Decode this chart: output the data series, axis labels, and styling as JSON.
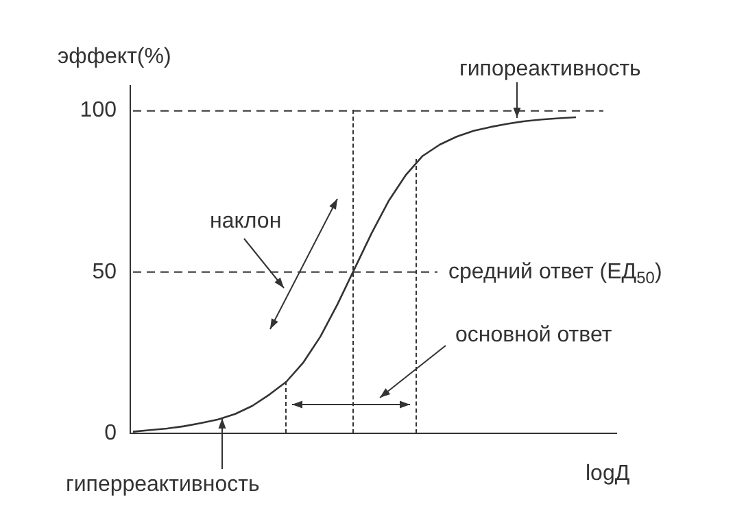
{
  "chart_data": {
    "type": "line",
    "ylabel": "эффект(%)",
    "xlabel": "logД",
    "categories": [
      null,
      null,
      null,
      null,
      null,
      null,
      null,
      null,
      null,
      null,
      null,
      null,
      null,
      null,
      null,
      null,
      null,
      null,
      null,
      null,
      null,
      null,
      null,
      null,
      null,
      null,
      null
    ],
    "ylim": [
      0,
      108
    ],
    "yticks": [
      0,
      50,
      100
    ],
    "tick_labels": "y",
    "grid": false,
    "legend": false,
    "marker": "none",
    "line_style": "solid",
    "series": [
      {
        "color": "#333333",
        "values": [
          0.5,
          1,
          1.5,
          2.2,
          3.2,
          4.3,
          6,
          8.5,
          12,
          16,
          22,
          30,
          40,
          51,
          62,
          72,
          80,
          86,
          89.5,
          92,
          93.8,
          95,
          96,
          96.8,
          97.3,
          97.7,
          98
        ]
      }
    ],
    "ref_lines": [
      {
        "axis": "y",
        "value": 100,
        "label": null,
        "line_style": "dashed",
        "color": "#333333"
      },
      {
        "axis": "y",
        "value": 50,
        "label": "средний ответ (ЕД$_{50}$)",
        "line_style": "dashed",
        "color": "#333333"
      }
    ],
    "annotations": [
      "гипореактивность",
      "гиперреактивность",
      "наклон",
      "основной ответ"
    ]
  }
}
